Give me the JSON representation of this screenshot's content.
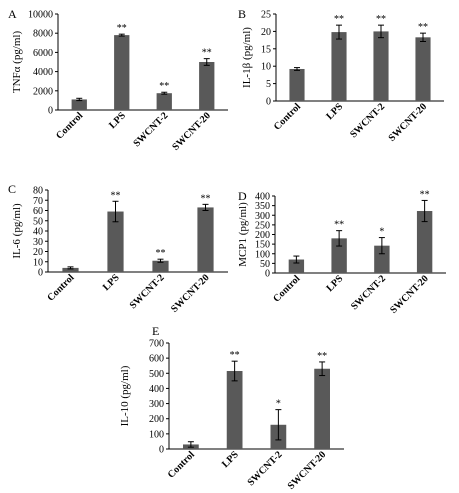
{
  "chart_data": [
    {
      "panel": "A",
      "type": "bar",
      "ylabel": "TNFα (pg/ml)",
      "ylim": [
        0,
        10000
      ],
      "yticks": [
        0,
        2000,
        4000,
        6000,
        8000,
        10000
      ],
      "categories": [
        "Control",
        "LPS",
        "SWCNT-2",
        "SWCNT-20"
      ],
      "values": [
        1100,
        7800,
        1750,
        5000
      ],
      "errors": [
        120,
        100,
        100,
        350
      ],
      "annotations": [
        "",
        "**",
        "**",
        "**"
      ]
    },
    {
      "panel": "B",
      "type": "bar",
      "ylabel": "IL-1β (pg/ml)",
      "ylim": [
        0,
        25
      ],
      "yticks": [
        0,
        5,
        10,
        15,
        20,
        25
      ],
      "categories": [
        "Control",
        "LPS",
        "SWCNT-2",
        "SWCNT-20"
      ],
      "values": [
        9.2,
        19.8,
        20,
        18.3
      ],
      "errors": [
        0.4,
        2,
        1.8,
        1.2
      ],
      "annotations": [
        "",
        "**",
        "**",
        "**"
      ]
    },
    {
      "panel": "C",
      "type": "bar",
      "ylabel": "IL-6 (pg/ml)",
      "ylim": [
        0,
        80
      ],
      "yticks": [
        0,
        10,
        20,
        30,
        40,
        50,
        60,
        70,
        80
      ],
      "categories": [
        "Control",
        "LPS",
        "SWCNT-2",
        "SWCNT-20"
      ],
      "values": [
        4,
        59,
        11,
        63
      ],
      "errors": [
        1,
        10,
        1.5,
        3
      ],
      "annotations": [
        "",
        "**",
        "**",
        "**"
      ]
    },
    {
      "panel": "D",
      "type": "bar",
      "ylabel": "MCP1 (pg/ml)",
      "ylim": [
        0,
        400
      ],
      "yticks": [
        0,
        50,
        100,
        150,
        200,
        250,
        300,
        350,
        400
      ],
      "categories": [
        "Control",
        "LPS",
        "SWCNT-2",
        "SWCNT-20"
      ],
      "values": [
        70,
        180,
        142,
        322
      ],
      "errors": [
        18,
        40,
        42,
        55
      ],
      "annotations": [
        "",
        "**",
        "*",
        "**"
      ]
    },
    {
      "panel": "E",
      "type": "bar",
      "ylabel": "IL-10 (pg/ml)",
      "ylim": [
        0,
        700
      ],
      "yticks": [
        0,
        100,
        200,
        300,
        400,
        500,
        600,
        700
      ],
      "categories": [
        "Control",
        "LPS",
        "SWCNT-2",
        "SWCNT-20"
      ],
      "values": [
        30,
        515,
        160,
        530
      ],
      "errors": [
        18,
        65,
        100,
        45
      ],
      "annotations": [
        "",
        "**",
        "*",
        "**"
      ]
    }
  ]
}
